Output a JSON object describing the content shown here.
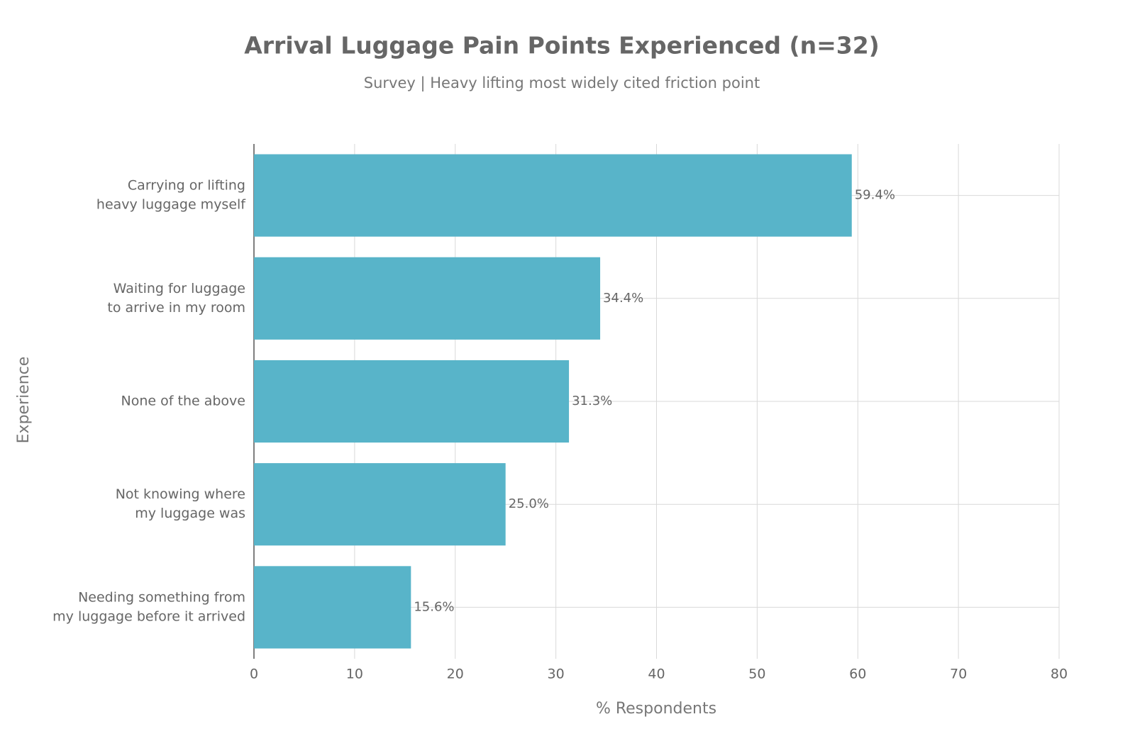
{
  "chart_data": {
    "type": "hbar",
    "title": "Arrival Luggage Pain Points Experienced (n=32)",
    "subtitle": "Survey | Heavy lifting most widely cited friction point",
    "x_label": "% Respondents",
    "y_label": "Experience",
    "categories": [
      [
        "Carrying or lifting",
        "heavy luggage myself"
      ],
      [
        "Waiting for luggage",
        "to arrive in my room"
      ],
      [
        "None of the above"
      ],
      [
        "Not knowing where",
        "my luggage was"
      ],
      [
        "Needing something from",
        "my luggage before it arrived"
      ]
    ],
    "values": [
      59.4,
      34.4,
      31.3,
      25.0,
      15.6
    ],
    "value_labels": [
      "59.4%",
      "34.4%",
      "31.3%",
      "25.0%",
      "15.6%"
    ],
    "color": "#58b4c9",
    "xlim": [
      0,
      80
    ],
    "xticks": [
      0,
      10,
      20,
      30,
      40,
      50,
      60,
      70,
      80
    ],
    "grid": true
  }
}
